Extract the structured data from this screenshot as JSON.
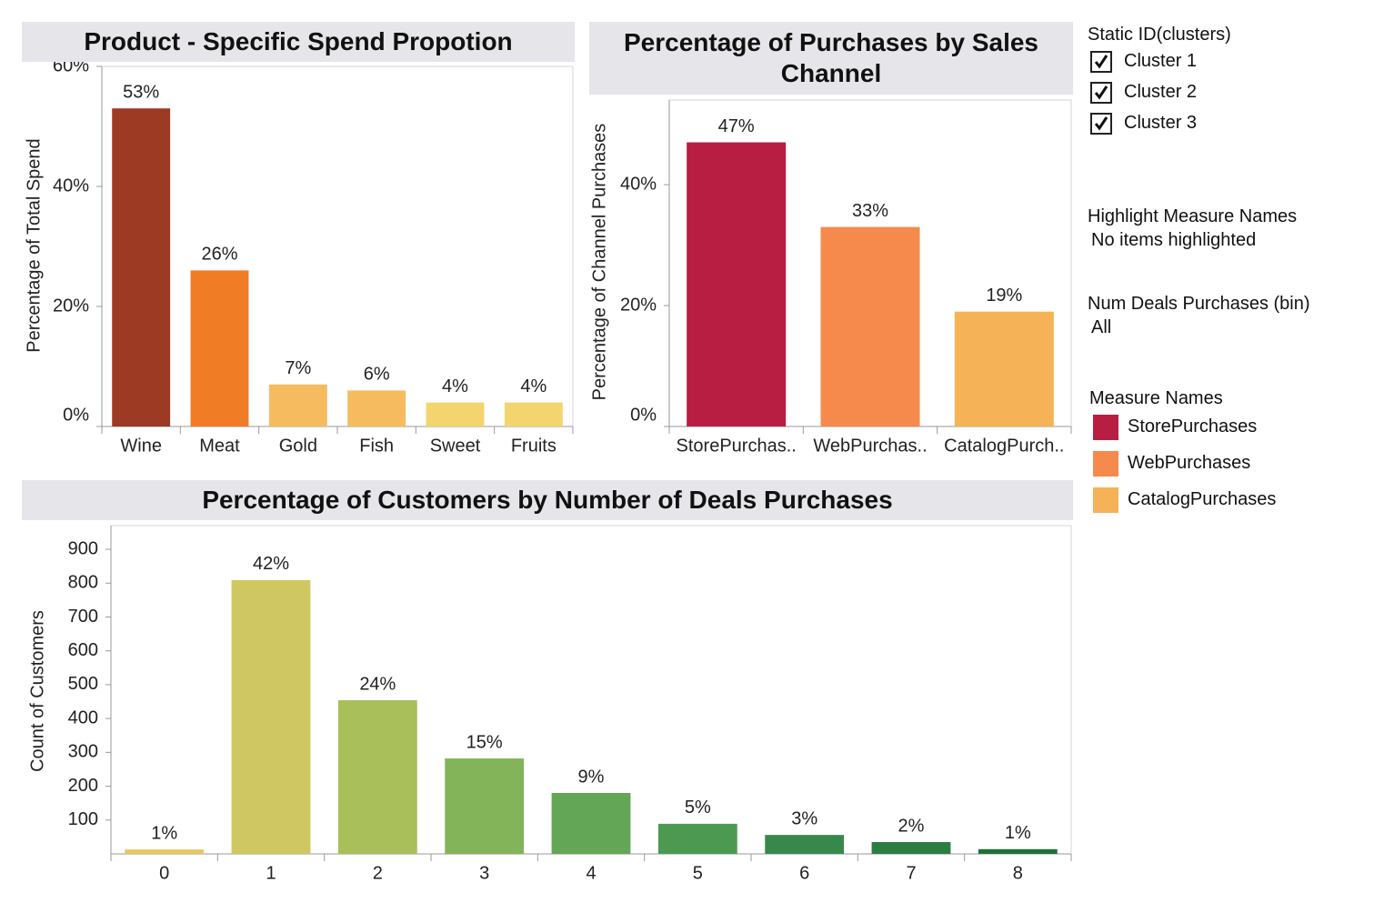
{
  "chart_data": [
    {
      "type": "bar",
      "title": "Product - Specific Spend Propotion",
      "y_label": "Percentage of Total Spend",
      "categories": [
        "Wine",
        "Meat",
        "Gold",
        "Fish",
        "Sweet",
        "Fruits"
      ],
      "values": [
        53,
        26,
        7,
        6,
        4,
        4
      ],
      "value_labels": [
        "53%",
        "26%",
        "7%",
        "6%",
        "4%",
        "4%"
      ],
      "colors": [
        "#9c3a24",
        "#f07d25",
        "#f7bb5f",
        "#f7bb5f",
        "#f3d46d",
        "#f3d46d"
      ],
      "ylim": [
        0,
        60
      ],
      "yticks": [
        {
          "value": 0,
          "label": "0%"
        },
        {
          "value": 20,
          "label": "20%"
        },
        {
          "value": 40,
          "label": "40%"
        },
        {
          "value": 60,
          "label": "60%"
        }
      ],
      "grid": false
    },
    {
      "type": "bar",
      "title": "Percentage of Purchases by Sales Channel",
      "y_label": "Percentage of Channel Purchases",
      "categories": [
        "StorePurchas..",
        "WebPurchas..",
        "CatalogPurch.."
      ],
      "values": [
        47,
        33,
        19
      ],
      "value_labels": [
        "47%",
        "33%",
        "19%"
      ],
      "colors": [
        "#b81e42",
        "#f58a4c",
        "#f5b256"
      ],
      "ylim": [
        0,
        54
      ],
      "yticks": [
        {
          "value": 0,
          "label": "0%"
        },
        {
          "value": 20,
          "label": "20%"
        },
        {
          "value": 40,
          "label": "40%"
        }
      ],
      "grid": false
    },
    {
      "type": "bar",
      "title": "Percentage of Customers by Number of Deals Purchases",
      "y_label": "Count of Customers",
      "categories": [
        "0",
        "1",
        "2",
        "3",
        "4",
        "5",
        "6",
        "7",
        "8"
      ],
      "values": [
        13,
        809,
        454,
        282,
        180,
        89,
        56,
        35,
        14
      ],
      "share_labels": [
        "1%",
        "42%",
        "24%",
        "15%",
        "9%",
        "5%",
        "3%",
        "2%",
        "1%"
      ],
      "colors": [
        "#e8c662",
        "#cfc862",
        "#a8bf5a",
        "#84b45a",
        "#62a656",
        "#4c9a52",
        "#37894b",
        "#2b7d42",
        "#1f6f3a"
      ],
      "ylim": [
        0,
        970
      ],
      "yticks": [
        100,
        200,
        300,
        400,
        500,
        600,
        700,
        800,
        900
      ],
      "grid": false
    }
  ],
  "filters": {
    "clusters": {
      "title": "Static ID(clusters)",
      "items": [
        "Cluster 1",
        "Cluster 2",
        "Cluster 3"
      ]
    },
    "highlight": {
      "title": "Highlight Measure Names",
      "value": "No items highlighted"
    },
    "deals_bin": {
      "title": "Num Deals Purchases (bin)",
      "value": "All"
    }
  },
  "legend": {
    "title": "Measure Names",
    "items": [
      {
        "name": "StorePurchases",
        "color": "#b81e42"
      },
      {
        "name": "WebPurchases",
        "color": "#f58a4c"
      },
      {
        "name": "CatalogPurchases",
        "color": "#f5b256"
      }
    ]
  }
}
